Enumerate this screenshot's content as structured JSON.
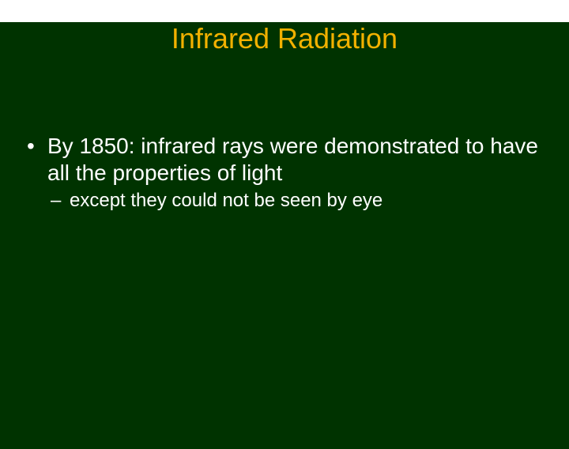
{
  "slide": {
    "background_color": "#003300",
    "title": {
      "text": "Infrared Radiation",
      "color": "#f2b100",
      "fontsize": 36
    },
    "bullets": {
      "main_fontsize": 28,
      "sub_fontsize": 24,
      "text_color": "#ffffff",
      "items": [
        {
          "text": "By 1850: infrared rays were demonstrated to have all the properties of light",
          "sub": [
            {
              "text": "except they could not be seen by eye"
            }
          ]
        }
      ]
    }
  }
}
